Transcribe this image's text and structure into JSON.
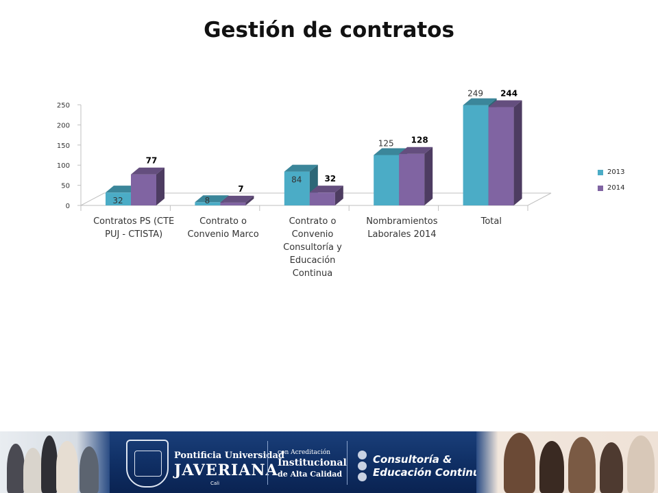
{
  "title": "Gestión de contratos",
  "chart_data": {
    "type": "bar",
    "categories": [
      [
        "Contratos PS (CTE",
        "PUJ - CTISTA)"
      ],
      [
        "Contrato o",
        "Convenio Marco"
      ],
      [
        "Contrato o",
        "Convenio",
        "Consultoría y",
        "Educación",
        "Continua"
      ],
      [
        "Nombramientos",
        "Laborales 2014"
      ],
      [
        "Total"
      ]
    ],
    "series": [
      {
        "name": "2013",
        "values": [
          32,
          8,
          84,
          125,
          249
        ],
        "labels": [
          "32",
          "8",
          "84",
          "125",
          "249"
        ],
        "color": "#4bacc6",
        "label_bold": false
      },
      {
        "name": "2014",
        "values": [
          77,
          7,
          32,
          128,
          244
        ],
        "labels": [
          "77",
          "7",
          "32",
          "128",
          "244"
        ],
        "color": "#8064a2",
        "label_bold": true
      }
    ],
    "yticks": [
      "0",
      "50",
      "100",
      "150",
      "200",
      "250"
    ],
    "ylim": [
      0,
      250
    ],
    "legend_position": "right",
    "grid": false,
    "style": "3d-clustered-column"
  },
  "footer": {
    "university_line1": "Pontificia Universidad",
    "university_line2": "JAVERIANA",
    "university_line3": "Cali",
    "accreditation_line1": "con Acreditación",
    "accreditation_line2": "Institucional",
    "accreditation_line3": "de Alta Calidad",
    "unit_line1": "Consultoría &",
    "unit_line2": "Educación Continua"
  }
}
